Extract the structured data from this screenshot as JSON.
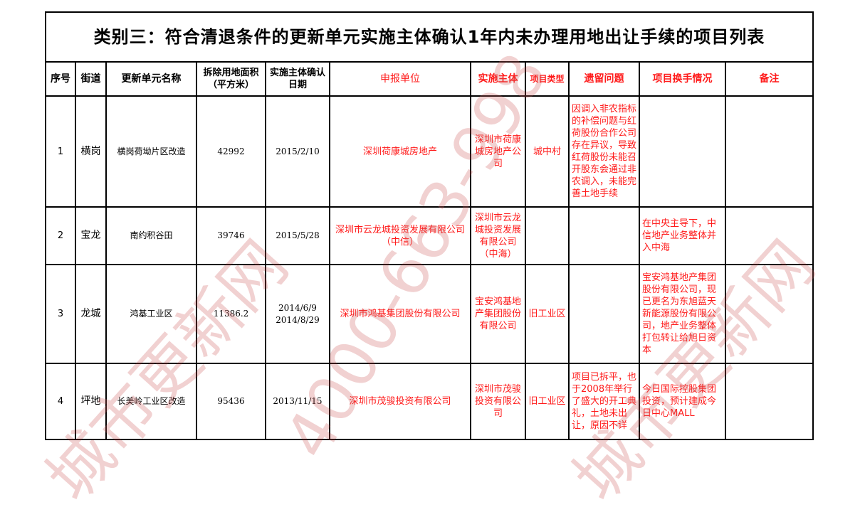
{
  "title": "类别三：符合清退条件的更新单元实施主体确认1年内未办理用地出让手续的项目列表",
  "headers": [
    "序号",
    "街道",
    "更新单元名称",
    "拆除用地面积（平方米）",
    "实施主体确认日期",
    "申报单位",
    "实施主体",
    "项目类型",
    "遗留问题",
    "项目换手情况",
    "备注"
  ],
  "rows": [
    {
      "no": "1",
      "street": "横岗",
      "name": "横岗荷坳片区改造",
      "area": "42992",
      "date": "2015/2/10",
      "applicant": "深圳荷康城房地产",
      "entity": "深圳市荷康城房地产公司",
      "type": "城中村",
      "issue": "因调入非农指标的补偿问题与红荷股份合作公司存在异议，导致红荷股份未能召开股东会通过非农调入，未能完善土地手续",
      "handover": "",
      "remark": ""
    },
    {
      "no": "2",
      "street": "宝龙",
      "name": "南约积谷田",
      "area": "39746",
      "date": "2015/5/28",
      "applicant": "深圳市云龙城投资发展有限公司（中信）",
      "entity": "深圳市云龙城投资发展有限公司（中海）",
      "type": "",
      "issue": "",
      "handover": "在中央主导下，中信地产业务整体并入中海",
      "remark": ""
    },
    {
      "no": "3",
      "street": "龙城",
      "name": "鸿基工业区",
      "area": "11386.2",
      "date": "2014/6/9 2014/8/29",
      "applicant": "深圳市鸿基集团股份有限公司",
      "entity": "宝安鸿基地产集团股份有限公司",
      "type": "旧工业区",
      "issue": "",
      "handover": "宝安鸿基地产集团股份有限公司，现已更名为东旭蓝天新能源股份有限公司，地产业务整体打包转让给旭日资本",
      "remark": ""
    },
    {
      "no": "4",
      "street": "坪地",
      "name": "长美岭工业区改造",
      "area": "95436",
      "date": "2013/11/15",
      "applicant": "深圳市茂骏投资有限公司",
      "entity": "深圳市茂骏投资有限公司",
      "type": "旧工业区",
      "issue": "项目已拆平，也于2008年举行了盛大的开工典礼，土地未出让，原因不详",
      "handover": "今日国际控股集团投资，预计建成今日中心MALL",
      "remark": ""
    }
  ],
  "watermark": {
    "text1": "城市更新网",
    "text2": "4000-663-998",
    "color": "#cd5a5a"
  }
}
